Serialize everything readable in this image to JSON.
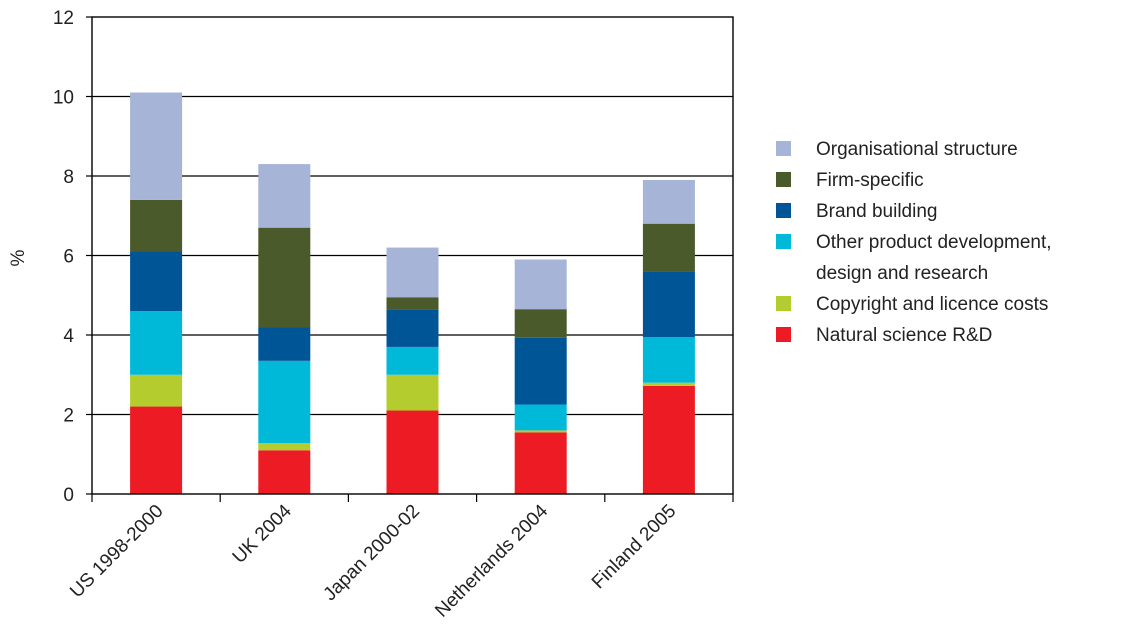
{
  "chart_data": {
    "type": "bar",
    "stacked": true,
    "ylabel": "%",
    "xlabel": "",
    "ylim": [
      0,
      12
    ],
    "yticks": [
      "0",
      "2",
      "4",
      "6",
      "8",
      "10",
      "12"
    ],
    "grid": true,
    "legend_position": "right",
    "categories": [
      "US 1998-2000",
      "UK 2004",
      "Japan 2000-02",
      "Netherlands 2004",
      "Finland 2005"
    ],
    "series": [
      {
        "name": "Natural science R&D",
        "color": "#ed1c24",
        "values": [
          2.2,
          1.1,
          2.1,
          1.55,
          2.72
        ]
      },
      {
        "name": "Copyright and licence costs",
        "color": "#b5cc2e",
        "values": [
          0.8,
          0.18,
          0.9,
          0.05,
          0.08
        ]
      },
      {
        "name": "Other product development, design and research",
        "color": "#00b9d9",
        "values": [
          1.6,
          2.07,
          0.7,
          0.65,
          1.15
        ]
      },
      {
        "name": "Brand building",
        "color": "#005596",
        "values": [
          1.5,
          0.85,
          0.95,
          1.68,
          1.65
        ]
      },
      {
        "name": "Firm-specific",
        "color": "#4b5a2a",
        "values": [
          1.3,
          2.5,
          0.3,
          0.72,
          1.2
        ]
      },
      {
        "name": "Organisational structure",
        "color": "#a5b4d7",
        "values": [
          2.7,
          1.6,
          1.25,
          1.25,
          1.1
        ]
      }
    ],
    "legend": [
      {
        "color": "#a5b4d7",
        "lines": [
          "Organisational structure"
        ]
      },
      {
        "color": "#4b5a2a",
        "lines": [
          "Firm-specific"
        ]
      },
      {
        "color": "#005596",
        "lines": [
          "Brand building"
        ]
      },
      {
        "color": "#00b9d9",
        "lines": [
          "Other product development,",
          "design and research"
        ]
      },
      {
        "color": "#b5cc2e",
        "lines": [
          "Copyright and licence costs"
        ]
      },
      {
        "color": "#ed1c24",
        "lines": [
          "Natural science R&D"
        ]
      }
    ]
  }
}
